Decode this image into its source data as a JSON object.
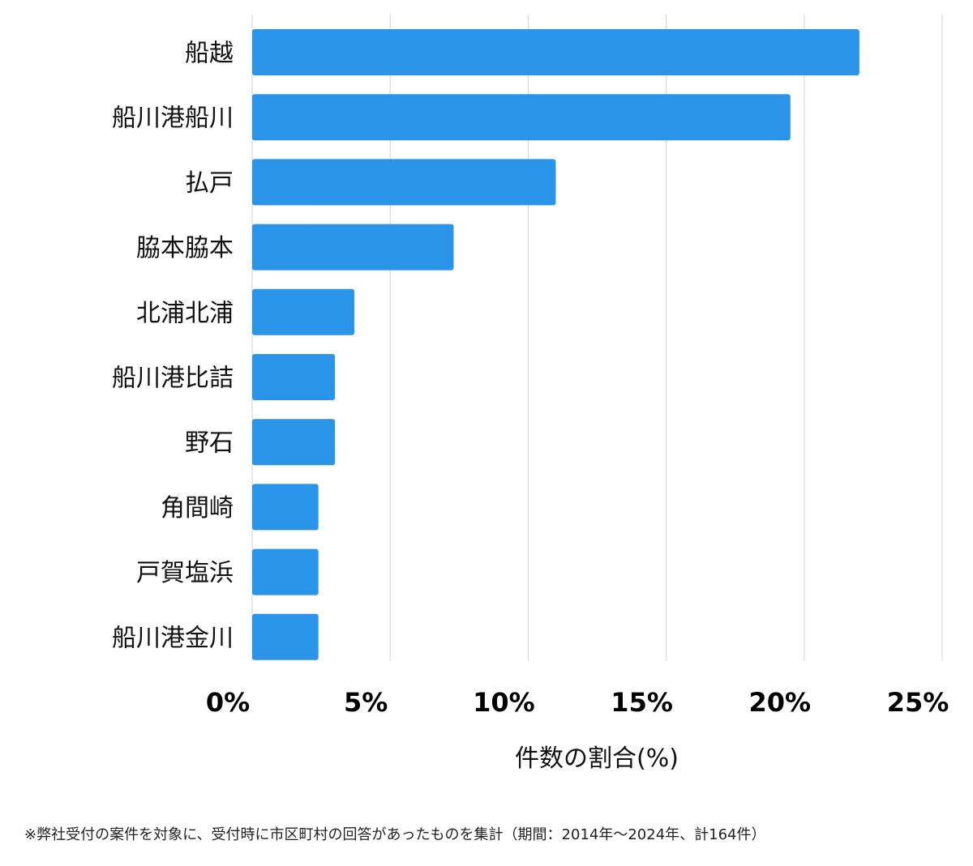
{
  "chart_data": {
    "type": "bar",
    "orientation": "horizontal",
    "categories": [
      "船越",
      "船川港船川",
      "払戸",
      "脇本脇本",
      "北浦北浦",
      "船川港比詰",
      "野石",
      "角間崎",
      "戸賀塩浜",
      "船川港金川"
    ],
    "values": [
      22.0,
      19.5,
      11.0,
      7.3,
      3.7,
      3.0,
      3.0,
      2.4,
      2.4,
      2.4
    ],
    "xlim": [
      0,
      25
    ],
    "xticks": [
      0,
      5,
      10,
      15,
      20,
      25
    ],
    "xtick_labels": [
      "0%",
      "5%",
      "10%",
      "15%",
      "20%",
      "25%"
    ],
    "xlabel": "件数の割合(%)",
    "ylabel": "",
    "grid": "vertical",
    "bar_color": "#2a94e8"
  },
  "footnote": "※弊社受付の案件を対象に、受付時に市区町村の回答があったものを集計（期間：2014年〜2024年、計164件）"
}
